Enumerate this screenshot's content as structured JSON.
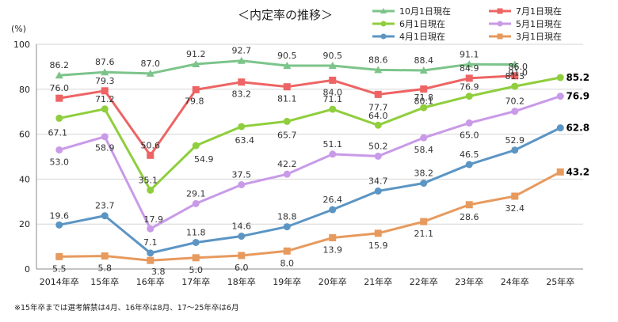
{
  "chart_data": {
    "type": "line",
    "title": "＜内定率の推移＞",
    "ylabel": "(%)",
    "ylim": [
      0,
      100
    ],
    "yticks": [
      0,
      20,
      40,
      60,
      80,
      100
    ],
    "grid": true,
    "legend_position": "top-right",
    "categories": [
      "2014年卒",
      "15年卒",
      "16年卒",
      "17年卒",
      "18年卒",
      "19年卒",
      "20年卒",
      "21年卒",
      "22年卒",
      "23年卒",
      "24年卒",
      "25年卒"
    ],
    "series": [
      {
        "key": "oct",
        "name": "10月1日現在",
        "color": "#7cc48a",
        "marker": "triangle",
        "values": [
          86.2,
          87.6,
          87.0,
          91.2,
          92.7,
          90.5,
          90.5,
          88.6,
          88.4,
          91.1,
          91.0,
          null
        ],
        "labels": [
          "86.2",
          "87.6",
          "87.0",
          "91.2",
          "92.7",
          "90.5",
          "90.5",
          "88.6",
          "88.4",
          "91.1",
          "91.0",
          null
        ]
      },
      {
        "key": "jul",
        "name": "7月1日現在",
        "color": "#ee6464",
        "marker": "square",
        "values": [
          76.0,
          79.3,
          50.6,
          79.8,
          83.2,
          81.1,
          84.0,
          77.7,
          80.1,
          84.9,
          86.0,
          null
        ],
        "labels": [
          "76.0",
          "79.3",
          "50.6",
          "79.8",
          "83.2",
          "81.1",
          "84.0",
          "77.7",
          "80.1",
          "84.9",
          "86.0",
          null
        ]
      },
      {
        "key": "jun",
        "name": "6月1日現在",
        "color": "#8fce3c",
        "marker": "circle",
        "values": [
          67.1,
          71.2,
          35.1,
          54.9,
          63.4,
          65.7,
          71.1,
          64.0,
          71.8,
          76.9,
          81.3,
          85.2
        ],
        "labels": [
          "67.1",
          "71.2",
          "35.1",
          "54.9",
          "63.4",
          "65.7",
          "71.1",
          "64.0",
          "71.8",
          "76.9",
          "81.3",
          "85.2"
        ]
      },
      {
        "key": "may",
        "name": "5月1日現在",
        "color": "#c99ae8",
        "marker": "circle",
        "values": [
          53.0,
          58.9,
          17.9,
          29.1,
          37.5,
          42.2,
          51.1,
          50.2,
          58.4,
          65.0,
          70.2,
          76.9
        ],
        "labels": [
          "53.0",
          "58.9",
          "17.9",
          "29.1",
          "37.5",
          "42.2",
          "51.1",
          "50.2",
          "58.4",
          "65.0",
          "70.2",
          "76.9"
        ]
      },
      {
        "key": "apr",
        "name": "4月1日現在",
        "color": "#5b95c4",
        "marker": "circle",
        "values": [
          19.6,
          23.7,
          7.1,
          11.8,
          14.6,
          18.8,
          26.4,
          34.7,
          38.2,
          46.5,
          52.9,
          62.8
        ],
        "labels": [
          "19.6",
          "23.7",
          "7.1",
          "11.8",
          "14.6",
          "18.8",
          "26.4",
          "34.7",
          "38.2",
          "46.5",
          "52.9",
          "62.8"
        ]
      },
      {
        "key": "mar",
        "name": "3月1日現在",
        "color": "#e79a5e",
        "marker": "square",
        "values": [
          5.5,
          5.8,
          3.8,
          5.0,
          6.0,
          8.0,
          13.9,
          15.9,
          21.1,
          28.6,
          32.4,
          43.2
        ],
        "labels": [
          "5.5",
          "5.8",
          "3.8",
          "5.0",
          "6.0",
          "8.0",
          "13.9",
          "15.9",
          "21.1",
          "28.6",
          "32.4",
          "43.2"
        ]
      }
    ],
    "footnote": "※15年卒までは選考解禁は4月、16年卒は8月、17～25年卒は6月"
  }
}
